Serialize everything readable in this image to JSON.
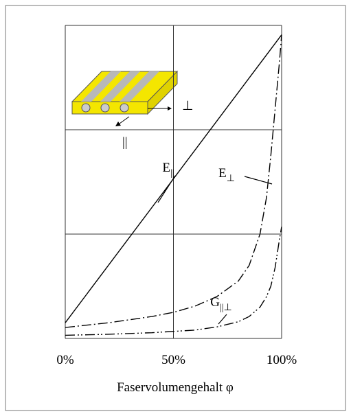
{
  "chart_data": {
    "type": "line",
    "x_label": "Faservolumengehalt φ",
    "xlim": [
      0,
      100
    ],
    "xticks": [
      {
        "value": 0,
        "label": "0%"
      },
      {
        "value": 50,
        "label": "50%"
      },
      {
        "value": 100,
        "label": "100%"
      }
    ],
    "ylim": [
      0,
      3
    ],
    "yticks": [
      0,
      1,
      2,
      3
    ],
    "grid": true,
    "inset_labels": [
      "⊥",
      "||"
    ],
    "series": [
      {
        "name": "E",
        "subscript": "||",
        "color": "#000000",
        "dash": "solid",
        "x": [
          0,
          100
        ],
        "values": [
          0.15,
          2.91
        ]
      },
      {
        "name": "E",
        "subscript": "⊥",
        "color": "#000000",
        "dash": "dash-dot",
        "x": [
          0,
          20,
          40,
          50,
          60,
          70,
          80,
          85,
          90,
          93,
          95,
          97,
          99,
          100
        ],
        "values": [
          0.105,
          0.15,
          0.21,
          0.25,
          0.31,
          0.4,
          0.55,
          0.7,
          1.0,
          1.35,
          1.75,
          2.2,
          2.65,
          2.91
        ]
      },
      {
        "name": "G",
        "subscript": "||⊥",
        "color": "#000000",
        "dash": "dash-dot-dot",
        "x": [
          0,
          20,
          40,
          60,
          70,
          80,
          85,
          90,
          93,
          95,
          97,
          99,
          100
        ],
        "values": [
          0.03,
          0.04,
          0.055,
          0.08,
          0.11,
          0.16,
          0.21,
          0.3,
          0.4,
          0.5,
          0.68,
          0.95,
          1.07
        ]
      }
    ]
  }
}
